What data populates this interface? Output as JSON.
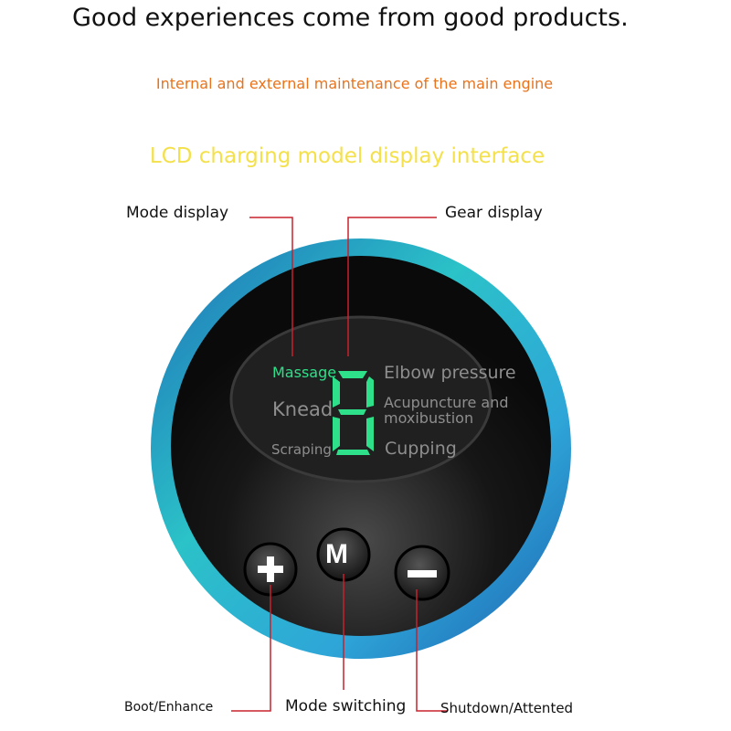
{
  "headline": "Good experiences come from good products.",
  "subtitle": "Internal and external maintenance of the main engine",
  "section_title": "LCD charging model display interface",
  "colors": {
    "accent_orange": "#e8731c",
    "accent_yellow": "#f4e04a",
    "callout_line": "#c8202c",
    "lcd_green": "#2fe08a",
    "ring": "#2a8fd8"
  },
  "callouts": {
    "mode_display": "Mode display",
    "gear_display": "Gear display",
    "boot": "Boot/Enhance",
    "mode_switch": "Mode switching",
    "shutdown": "Shutdown/Attented"
  },
  "lcd": {
    "modes_left": [
      "Massage",
      "Knead",
      "Scraping"
    ],
    "modes_right": [
      "Elbow pressure",
      "Acupuncture and moxibustion",
      "Cupping"
    ],
    "active_mode": "Massage",
    "gear_digit": "8"
  },
  "buttons": {
    "plus": "+",
    "mode": "M",
    "minus": "−"
  }
}
